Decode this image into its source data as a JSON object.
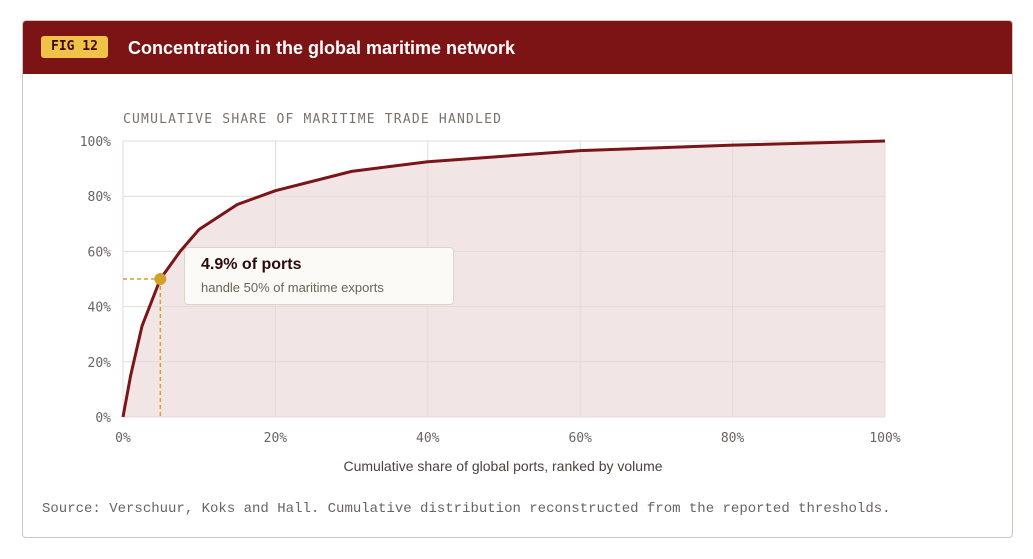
{
  "figure": {
    "badge": "FIG 12",
    "title": "Concentration in the global maritime network",
    "source": "Source: Verschuur, Koks and Hall. Cumulative distribution reconstructed from the reported thresholds."
  },
  "colors": {
    "header": "#7c1416",
    "badge": "#f0c247",
    "line": "#7a1519",
    "fill": "#f2e5e6",
    "marker": "#d4a02c",
    "grid": "#e4dad5"
  },
  "chart_data": {
    "type": "area",
    "title": "CUMULATIVE SHARE OF MARITIME TRADE HANDLED",
    "xlabel": "Cumulative share of global ports, ranked by volume",
    "ylabel": "",
    "xlim": [
      0,
      100
    ],
    "ylim": [
      0,
      100
    ],
    "x_ticks": [
      "0%",
      "20%",
      "40%",
      "60%",
      "80%",
      "100%"
    ],
    "y_ticks": [
      "0%",
      "20%",
      "40%",
      "60%",
      "80%",
      "100%"
    ],
    "grid": true,
    "series": [
      {
        "x": [
          0,
          1,
          2.5,
          4.9,
          7.5,
          10,
          15,
          20,
          30,
          40,
          60,
          80,
          100
        ],
        "y": [
          0,
          15,
          33,
          50,
          60,
          68,
          77,
          82,
          89,
          92.5,
          96.5,
          98.5,
          100
        ]
      }
    ],
    "annotation": {
      "x": 4.9,
      "y": 50,
      "title": "4.9% of ports",
      "text": "handle 50% of maritime exports"
    }
  }
}
